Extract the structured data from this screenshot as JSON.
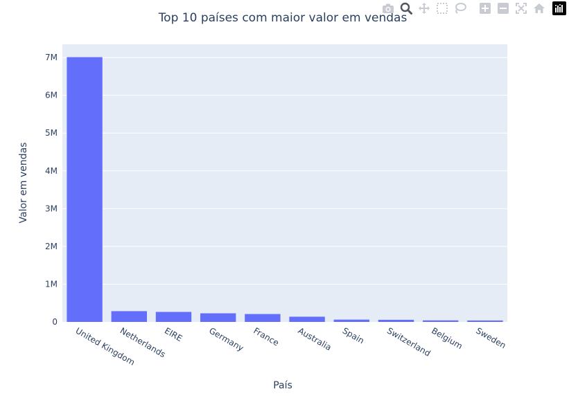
{
  "chart_data": {
    "type": "bar",
    "title": "Top 10 países com maior valor em vendas",
    "xlabel": "País",
    "ylabel": "Valor em vendas",
    "categories": [
      "United Kingdom",
      "Netherlands",
      "EIRE",
      "Germany",
      "France",
      "Australia",
      "Spain",
      "Switzerland",
      "Belgium",
      "Sweden"
    ],
    "values": [
      7010000,
      285000,
      265000,
      228000,
      209000,
      138000,
      61000,
      56000,
      41000,
      38000
    ],
    "ylim": [
      0,
      7350000
    ],
    "yticks": [
      0,
      1000000,
      2000000,
      3000000,
      4000000,
      5000000,
      6000000,
      7000000
    ],
    "ytick_labels": [
      "0",
      "1M",
      "2M",
      "3M",
      "4M",
      "5M",
      "6M",
      "7M"
    ],
    "grid": true,
    "bar_color": "#636efa",
    "plot_bg": "#e5ecf6"
  },
  "modebar": {
    "buttons": [
      "camera-icon",
      "zoom-icon",
      "pan-icon",
      "box-select-icon",
      "lasso-select-icon",
      "zoom-in-icon",
      "zoom-out-icon",
      "autoscale-icon",
      "reset-axes-icon"
    ],
    "logo": "plotly-logo-icon"
  }
}
